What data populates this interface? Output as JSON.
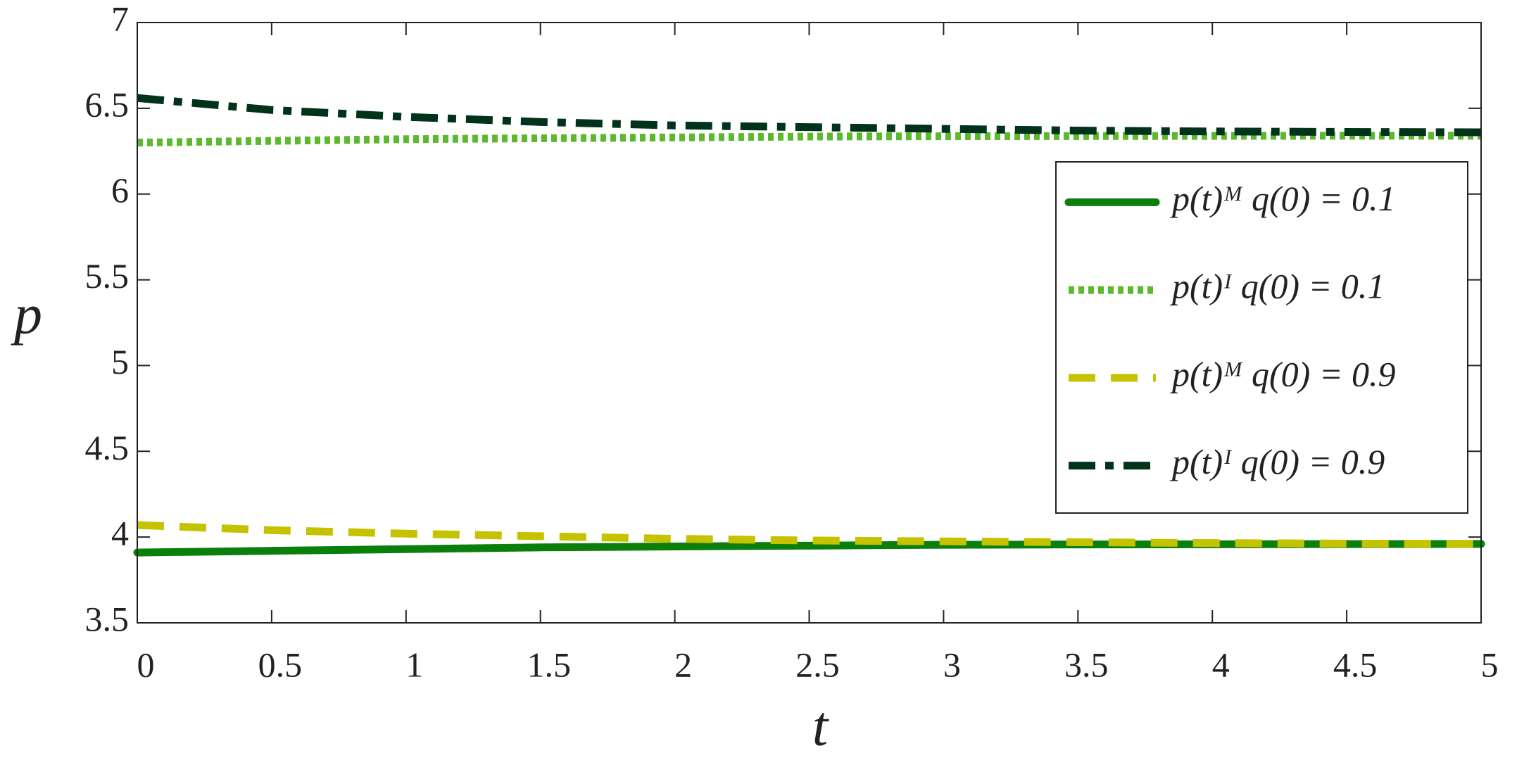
{
  "chart_data": {
    "type": "line",
    "x_label": "t",
    "y_label": "p",
    "x": [
      0,
      0.5,
      1,
      1.5,
      2,
      2.5,
      3,
      3.5,
      4,
      4.5,
      5
    ],
    "series": [
      {
        "name": "p(t)ᴹ  q(0) = 0.1",
        "color": "#0b7f0b",
        "style": "solid",
        "values": [
          3.91,
          3.92,
          3.93,
          3.94,
          3.945,
          3.95,
          3.955,
          3.957,
          3.958,
          3.959,
          3.96
        ]
      },
      {
        "name": "p(t)ᴵ  q(0) = 0.1",
        "color": "#5cb82d",
        "style": "dotted",
        "values": [
          6.3,
          6.31,
          6.32,
          6.325,
          6.33,
          6.335,
          6.337,
          6.338,
          6.339,
          6.34,
          6.34
        ]
      },
      {
        "name": "p(t)ᴹ  q(0) = 0.9",
        "color": "#c5c200",
        "style": "dashed",
        "values": [
          4.07,
          4.04,
          4.02,
          4.005,
          3.99,
          3.98,
          3.975,
          3.97,
          3.965,
          3.962,
          3.96
        ]
      },
      {
        "name": "p(t)ᴵ  q(0) = 0.9",
        "color": "#00331a",
        "style": "dashdot",
        "values": [
          6.56,
          6.49,
          6.45,
          6.42,
          6.4,
          6.39,
          6.38,
          6.37,
          6.365,
          6.362,
          6.36
        ]
      }
    ],
    "xlim": [
      0,
      5
    ],
    "xticks": [
      0,
      0.5,
      1,
      1.5,
      2,
      2.5,
      3,
      3.5,
      4,
      4.5,
      5
    ],
    "ylim": [
      3.5,
      7
    ],
    "yticks": [
      3.5,
      4,
      4.5,
      5,
      5.5,
      6,
      6.5,
      7
    ],
    "grid": false,
    "legend": "right"
  }
}
